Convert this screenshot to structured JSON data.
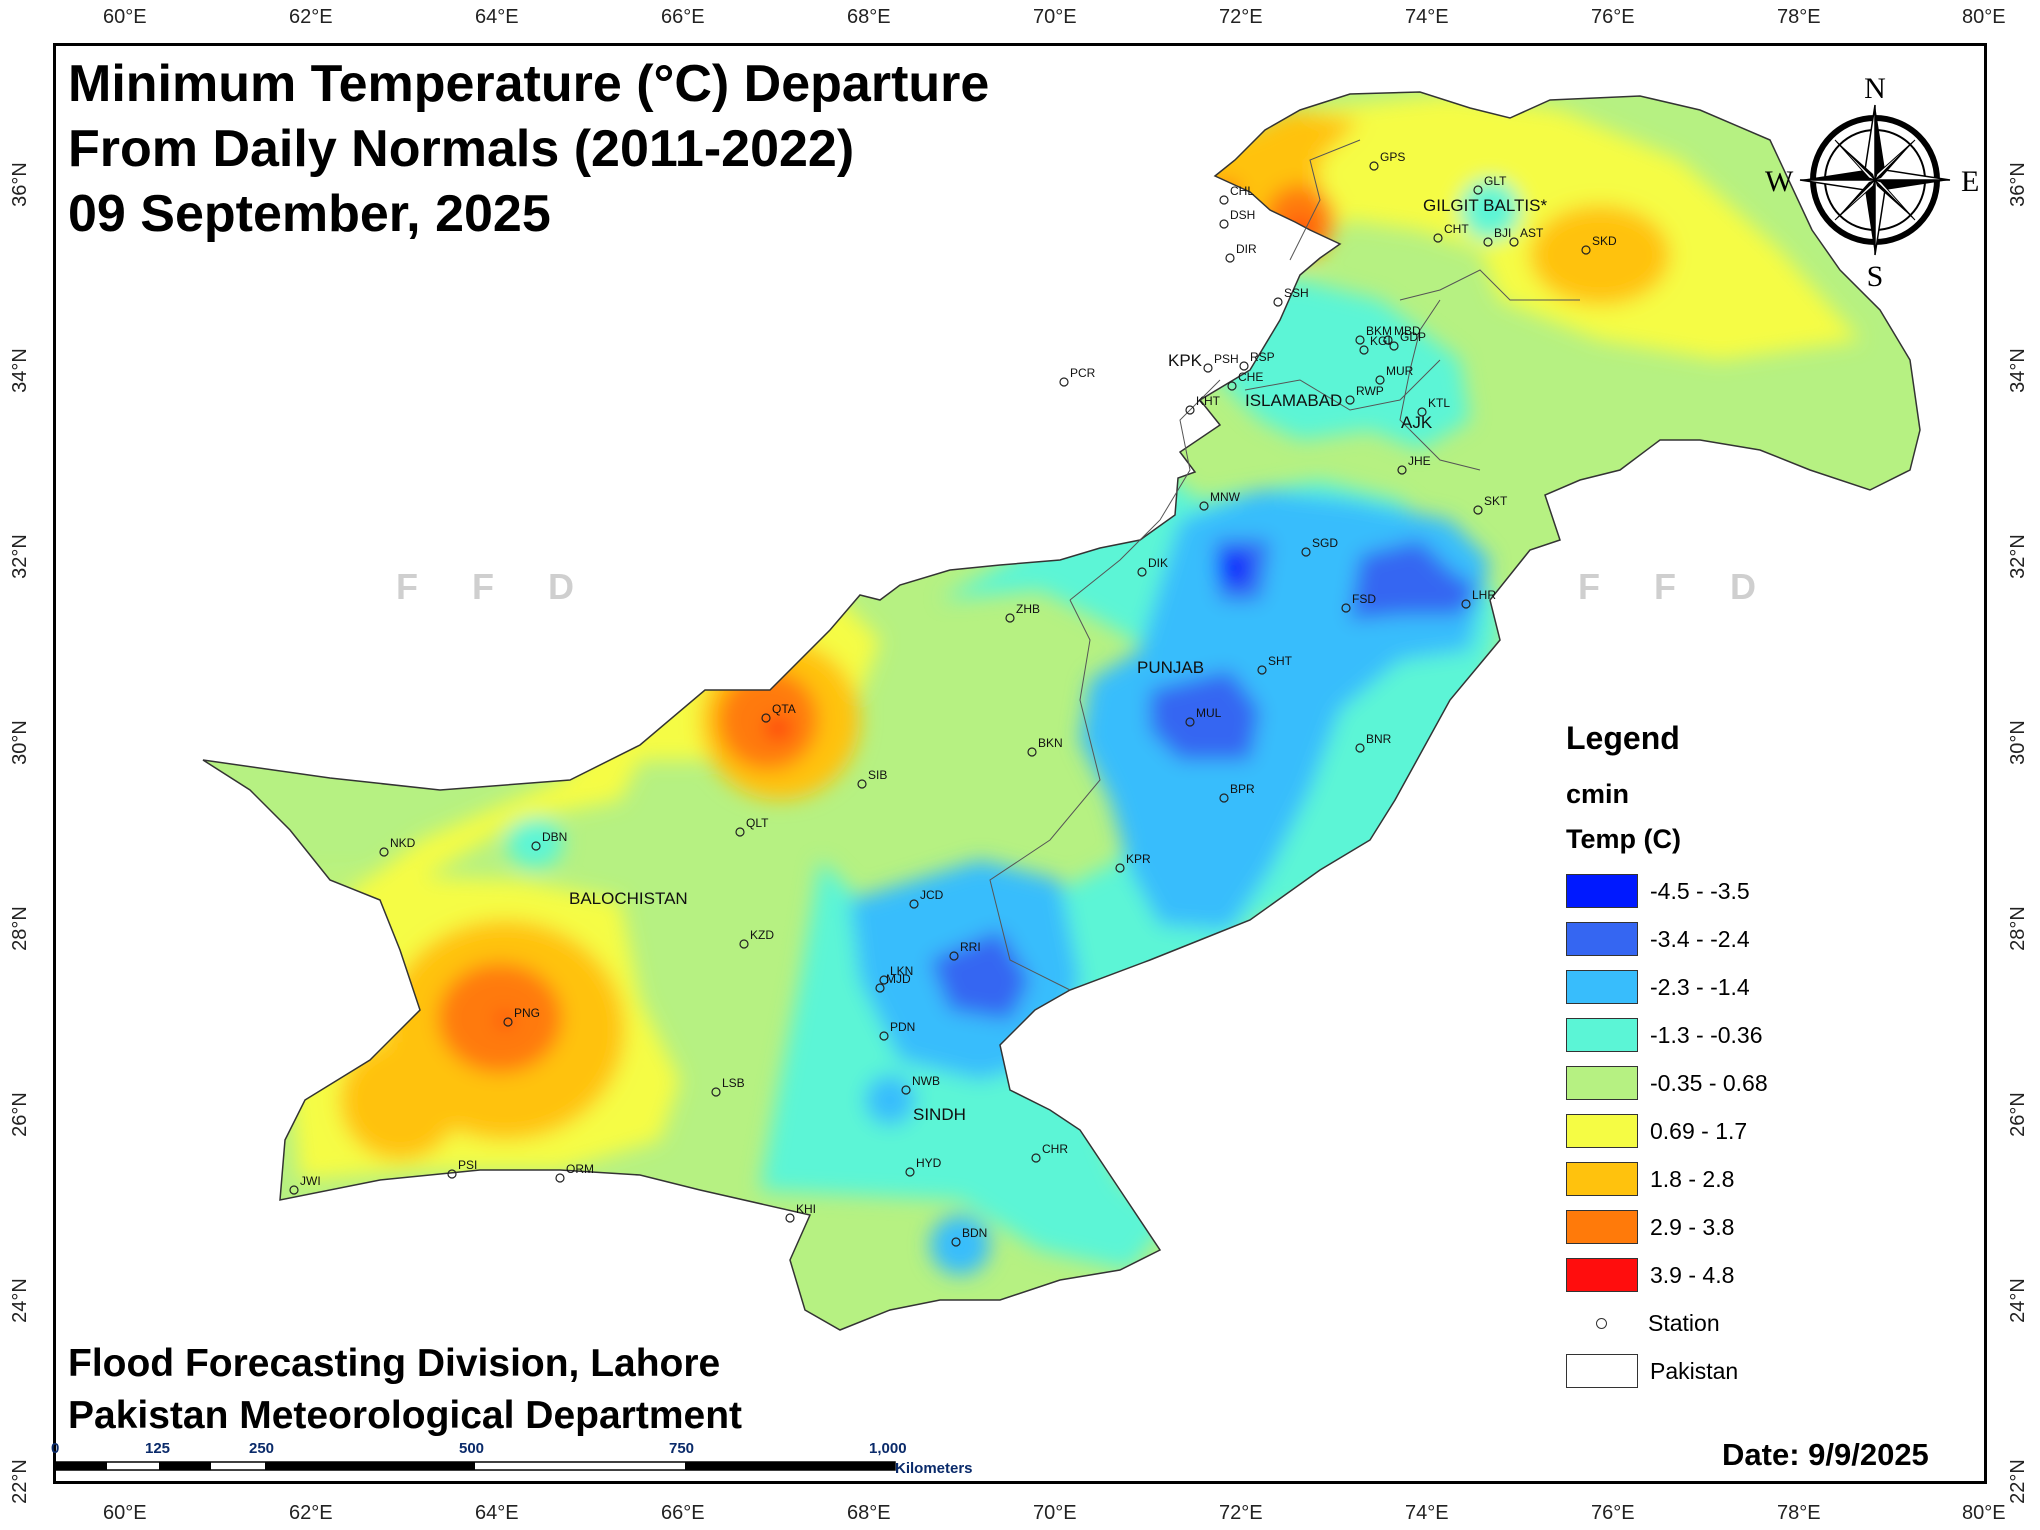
{
  "title": {
    "line1": "Minimum Temperature (°C) Departure",
    "line2": "From Daily Normals (2011-2022)",
    "line3": "09 September, 2025"
  },
  "organization": {
    "line1": "Flood Forecasting Division, Lahore",
    "line2": "Pakistan Meteorological Department"
  },
  "date_label": "Date: 9/9/2025",
  "watermark": "F F D",
  "axes": {
    "lon_ticks": [
      "60°E",
      "62°E",
      "64°E",
      "66°E",
      "68°E",
      "70°E",
      "72°E",
      "74°E",
      "76°E",
      "78°E",
      "80°E"
    ],
    "lat_ticks": [
      "36°N",
      "34°N",
      "32°N",
      "30°N",
      "28°N",
      "26°N",
      "24°N",
      "22°N"
    ]
  },
  "compass": {
    "n": "N",
    "s": "S",
    "e": "E",
    "w": "W"
  },
  "legend": {
    "heading": "Legend",
    "field": "cmin",
    "unit_title": "Temp (C)",
    "classes": [
      {
        "label": "-4.5 - -3.5",
        "color": "#0019ff"
      },
      {
        "label": "-3.4 - -2.4",
        "color": "#3566f2"
      },
      {
        "label": "-2.3 - -1.4",
        "color": "#38bdfc"
      },
      {
        "label": "-1.3 - -0.36",
        "color": "#5bf5d6"
      },
      {
        "label": "-0.35 - 0.68",
        "color": "#b6f182"
      },
      {
        "label": "0.69 - 1.7",
        "color": "#f5fc44"
      },
      {
        "label": "1.8 - 2.8",
        "color": "#ffc20d"
      },
      {
        "label": "2.9 - 3.8",
        "color": "#ff7a0a"
      },
      {
        "label": "3.9 - 4.8",
        "color": "#ff0d0d"
      }
    ],
    "station_label": "Station",
    "pakistan_label": "Pakistan"
  },
  "regions": {
    "gilgit": "GILGIT BALTIS*",
    "kpk": "KPK",
    "islamabad": "ISLAMABAD",
    "ajk": "AJK",
    "punjab": "PUNJAB",
    "balochistan": "BALOCHISTAN",
    "sindh": "SINDH"
  },
  "stations": [
    "GPS",
    "CHL",
    "DSH",
    "DIR",
    "GLT",
    "CHT",
    "BJI",
    "AST",
    "SKD",
    "SSH",
    "BKM",
    "MBD",
    "KGI",
    "GDP",
    "PSH",
    "RSP",
    "MUR",
    "CHE",
    "KHT",
    "RWP",
    "KTL",
    "PCR",
    "JHE",
    "MNW",
    "SKT",
    "SGD",
    "DIK",
    "LHR",
    "FSD",
    "ZHB",
    "SHT",
    "QTA",
    "MUL",
    "BKN",
    "BNR",
    "SIB",
    "BPR",
    "DBN",
    "QLT",
    "NKD",
    "KPR",
    "JCD",
    "KZD",
    "RRI",
    "LKN",
    "MJD",
    "PNG",
    "PDN",
    "LSB",
    "NWB",
    "CHR",
    "HYD",
    "PSI",
    "ORM",
    "JWI",
    "KHI",
    "BDN"
  ],
  "scale": {
    "ticks": [
      "0",
      "125",
      "250",
      "500",
      "750",
      "1,000"
    ],
    "unit": "Kilometers"
  }
}
